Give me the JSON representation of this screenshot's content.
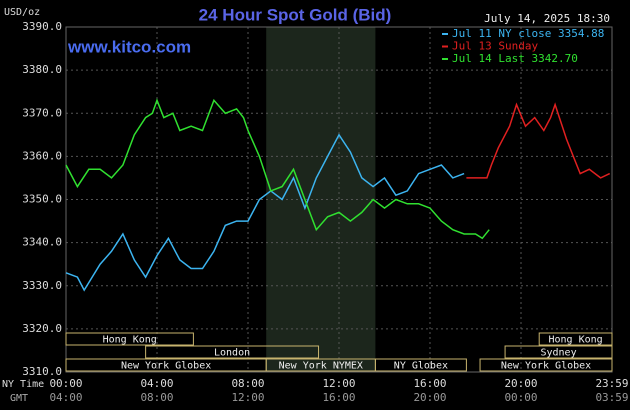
{
  "chart_data": {
    "type": "line",
    "title": "24 Hour Spot Gold (Bid)",
    "y_unit": "USD/oz",
    "website": "www.kitco.com",
    "timestamp": "July 14, 2025 18:30",
    "x_axis_name": "NY Time",
    "x2_axis_name": "GMT",
    "xlim": [
      0,
      24
    ],
    "xticks": [
      {
        "value": 0,
        "label": "00:00"
      },
      {
        "value": 4,
        "label": "04:00"
      },
      {
        "value": 8,
        "label": "08:00"
      },
      {
        "value": 12,
        "label": "12:00"
      },
      {
        "value": 16,
        "label": "16:00"
      },
      {
        "value": 20,
        "label": "20:00"
      },
      {
        "value": 24,
        "label": "23:59"
      }
    ],
    "x2tick_labels": [
      "04:00",
      "08:00",
      "12:00",
      "16:00",
      "20:00",
      "00:00",
      "03:59"
    ],
    "ylim": [
      3310,
      3390
    ],
    "yticks": [
      {
        "value": 3310,
        "label": "3310.0"
      },
      {
        "value": 3320,
        "label": "3320.0"
      },
      {
        "value": 3330,
        "label": "3330.0"
      },
      {
        "value": 3340,
        "label": "3340.0"
      },
      {
        "value": 3350,
        "label": "3350.0"
      },
      {
        "value": 3360,
        "label": "3360.0"
      },
      {
        "value": 3370,
        "label": "3370.0"
      },
      {
        "value": 3380,
        "label": "3380.0"
      },
      {
        "value": 3390,
        "label": "3390.0"
      }
    ],
    "grid": true,
    "series": [
      {
        "name": "Jul 11 NY close 3354.88",
        "color": "#3cb4f0",
        "x": [
          0,
          0.5,
          0.8,
          1.5,
          2,
          2.5,
          3,
          3.5,
          4,
          4.5,
          5,
          5.5,
          6,
          6.5,
          7,
          7.5,
          8,
          8.5,
          9,
          9.5,
          10,
          10.5,
          11,
          11.5,
          12,
          12.5,
          13,
          13.5,
          14,
          14.5,
          15,
          15.5,
          16,
          16.5,
          17,
          17.5
        ],
        "values": [
          3333,
          3332,
          3329,
          3335,
          3338,
          3342,
          3336,
          3332,
          3337,
          3341,
          3336,
          3334,
          3334,
          3338,
          3344,
          3345,
          3345,
          3350,
          3352,
          3350,
          3355,
          3348,
          3355,
          3360,
          3365,
          3361,
          3355,
          3353,
          3355,
          3351,
          3352,
          3356,
          3357,
          3358,
          3355,
          3356
        ]
      },
      {
        "name": "Jul 13 Sunday",
        "color": "#e02020",
        "x": [
          17.6,
          18.5,
          18.7,
          19,
          19.5,
          19.8,
          20.2,
          20.6,
          21,
          21.3,
          21.5,
          22,
          22.3,
          22.6,
          23,
          23.5,
          23.9
        ],
        "values": [
          3355,
          3355,
          3358,
          3362,
          3367,
          3372,
          3367,
          3369,
          3366,
          3369,
          3372,
          3364,
          3360,
          3356,
          3357,
          3355,
          3356
        ]
      },
      {
        "name": "Jul 14 Last 3342.70",
        "color": "#30e030",
        "x": [
          0,
          0.5,
          1,
          1.5,
          2,
          2.5,
          3,
          3.5,
          3.8,
          4,
          4.3,
          4.7,
          5,
          5.5,
          6,
          6.5,
          7,
          7.5,
          7.8,
          8,
          8.5,
          9,
          9.5,
          10,
          10.5,
          11,
          11.5,
          12,
          12.5,
          13,
          13.5,
          14,
          14.5,
          15,
          15.5,
          16,
          16.5,
          17,
          17.5,
          18,
          18.3,
          18.6
        ],
        "values": [
          3358,
          3353,
          3357,
          3357,
          3355,
          3358,
          3365,
          3369,
          3370,
          3373,
          3369,
          3370,
          3366,
          3367,
          3366,
          3373,
          3370,
          3371,
          3369,
          3366,
          3360,
          3352,
          3353,
          3357,
          3350,
          3343,
          3346,
          3347,
          3345,
          3347,
          3350,
          3348,
          3350,
          3349,
          3349,
          3348,
          3345,
          3343,
          3342,
          3342,
          3341,
          3343
        ]
      }
    ],
    "sessions": [
      {
        "label": "Hong Kong",
        "row": 0,
        "start": 0,
        "end": 5.6
      },
      {
        "label": "Hong Kong",
        "row": 0,
        "start": 20.8,
        "end": 24
      },
      {
        "label": "London",
        "row": 1,
        "start": 3.5,
        "end": 11.1
      },
      {
        "label": "Sydney",
        "row": 1,
        "start": 19.3,
        "end": 24
      },
      {
        "label": "New York Globex",
        "row": 2,
        "start": 0,
        "end": 8.8
      },
      {
        "label": "New York NYMEX",
        "row": 2,
        "start": 8.8,
        "end": 13.6
      },
      {
        "label": "NY Globex",
        "row": 2,
        "start": 13.6,
        "end": 17.6
      },
      {
        "label": "New York Globex",
        "row": 2,
        "start": 18.2,
        "end": 24
      }
    ]
  }
}
